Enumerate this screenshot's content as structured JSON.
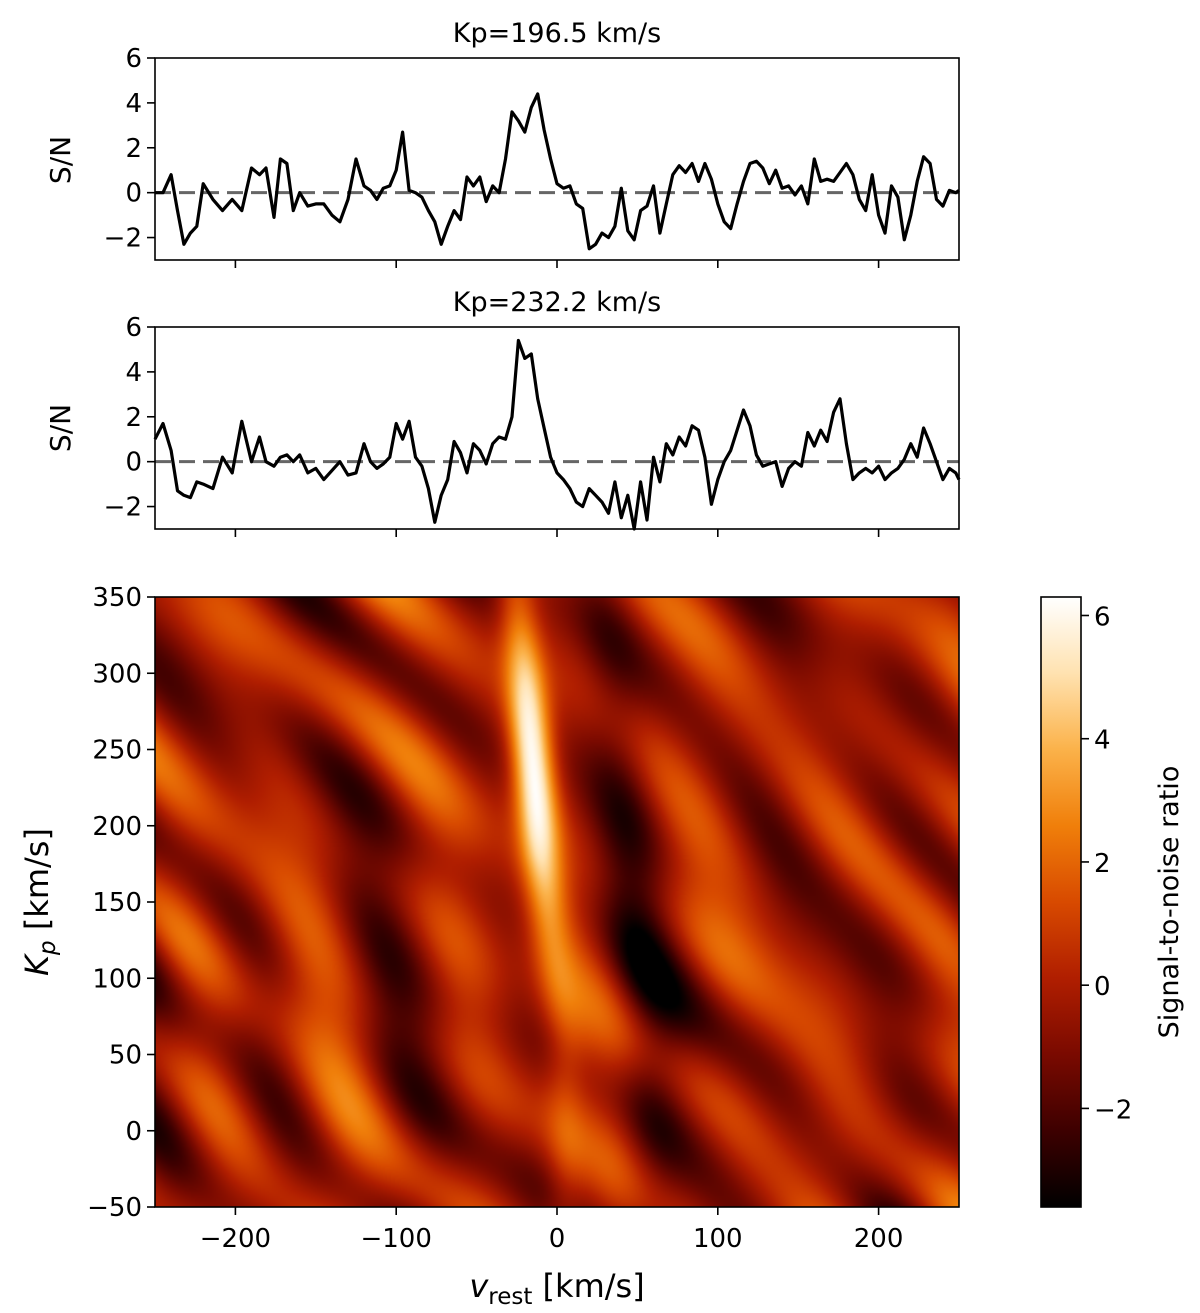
{
  "colors": {
    "line": "#000000",
    "zero_line": "#666666",
    "colormap": [
      "#000000",
      "#3d0000",
      "#7a0a00",
      "#b01e00",
      "#d84a00",
      "#f07f0a",
      "#fbb24a",
      "#ffe2b0",
      "#ffffff"
    ]
  },
  "chart_data": [
    {
      "type": "line",
      "title": "Kp=196.5 km/s",
      "ylabel": "S/N",
      "xlabel": "",
      "xlim": [
        -250,
        250
      ],
      "ylim": [
        -3,
        6
      ],
      "yticks": [
        -2,
        0,
        2,
        4,
        6
      ],
      "yticklabels": [
        "−2",
        "0",
        "2",
        "4",
        "6"
      ],
      "xticks": [
        -200,
        -100,
        0,
        100,
        200
      ],
      "zero_line": 0,
      "x": [
        -250,
        -245,
        -240,
        -236,
        -232,
        -228,
        -224,
        -220,
        -214,
        -208,
        -202,
        -196,
        -190,
        -185,
        -181,
        -176,
        -172,
        -168,
        -164,
        -160,
        -155,
        -150,
        -145,
        -140,
        -135,
        -130,
        -125,
        -120,
        -116,
        -112,
        -108,
        -104,
        -100,
        -96,
        -92,
        -88,
        -84,
        -80,
        -76,
        -72,
        -68,
        -64,
        -60,
        -56,
        -52,
        -48,
        -44,
        -40,
        -36,
        -32,
        -28,
        -24,
        -20,
        -16,
        -12,
        -8,
        -4,
        0,
        4,
        8,
        12,
        16,
        20,
        24,
        28,
        32,
        36,
        40,
        44,
        48,
        52,
        56,
        60,
        64,
        68,
        72,
        76,
        80,
        84,
        88,
        92,
        96,
        100,
        104,
        108,
        112,
        116,
        120,
        124,
        128,
        132,
        136,
        140,
        144,
        148,
        152,
        156,
        160,
        164,
        168,
        172,
        176,
        180,
        184,
        188,
        192,
        196,
        200,
        204,
        208,
        212,
        216,
        220,
        224,
        228,
        232,
        236,
        240,
        244,
        248,
        250
      ],
      "y": [
        0.0,
        0.0,
        0.8,
        -0.8,
        -2.3,
        -1.8,
        -1.5,
        0.4,
        -0.3,
        -0.8,
        -0.3,
        -0.8,
        1.1,
        0.8,
        1.1,
        -1.1,
        1.5,
        1.3,
        -0.8,
        0.0,
        -0.6,
        -0.5,
        -0.5,
        -1.0,
        -1.3,
        -0.3,
        1.5,
        0.3,
        0.1,
        -0.3,
        0.2,
        0.3,
        1.0,
        2.7,
        0.1,
        0.0,
        -0.2,
        -0.8,
        -1.3,
        -2.3,
        -1.5,
        -0.8,
        -1.2,
        0.7,
        0.3,
        0.7,
        -0.4,
        0.3,
        0.0,
        1.5,
        3.6,
        3.2,
        2.7,
        3.8,
        4.4,
        2.8,
        1.5,
        0.4,
        0.2,
        0.3,
        -0.5,
        -0.7,
        -2.5,
        -2.3,
        -1.8,
        -2.0,
        -1.5,
        0.2,
        -1.7,
        -2.1,
        -0.8,
        -0.6,
        0.3,
        -1.8,
        -0.5,
        0.8,
        1.2,
        0.9,
        1.3,
        0.5,
        1.3,
        0.6,
        -0.5,
        -1.3,
        -1.6,
        -0.5,
        0.5,
        1.3,
        1.4,
        1.1,
        0.4,
        1.0,
        0.2,
        0.3,
        -0.1,
        0.3,
        -0.5,
        1.5,
        0.5,
        0.6,
        0.5,
        0.9,
        1.3,
        0.8,
        -0.3,
        -0.8,
        0.8,
        -1.0,
        -1.8,
        0.3,
        -0.2,
        -2.1,
        -1.0,
        0.5,
        1.6,
        1.3,
        -0.3,
        -0.6,
        0.1,
        0.0,
        0.1
      ]
    },
    {
      "type": "line",
      "title": "Kp=232.2 km/s",
      "ylabel": "S/N",
      "xlabel": "",
      "xlim": [
        -250,
        250
      ],
      "ylim": [
        -3,
        6
      ],
      "yticks": [
        -2,
        0,
        2,
        4,
        6
      ],
      "yticklabels": [
        "−2",
        "0",
        "2",
        "4",
        "6"
      ],
      "xticks": [
        -200,
        -100,
        0,
        100,
        200
      ],
      "zero_line": 0,
      "x": [
        -250,
        -245,
        -240,
        -236,
        -232,
        -228,
        -224,
        -220,
        -214,
        -208,
        -202,
        -196,
        -190,
        -185,
        -181,
        -176,
        -172,
        -168,
        -164,
        -160,
        -155,
        -150,
        -145,
        -140,
        -135,
        -130,
        -125,
        -120,
        -116,
        -112,
        -108,
        -104,
        -100,
        -96,
        -92,
        -88,
        -84,
        -80,
        -76,
        -72,
        -68,
        -64,
        -60,
        -56,
        -52,
        -48,
        -44,
        -40,
        -36,
        -32,
        -28,
        -24,
        -20,
        -16,
        -12,
        -8,
        -4,
        0,
        4,
        8,
        12,
        16,
        20,
        24,
        28,
        32,
        36,
        40,
        44,
        48,
        52,
        56,
        60,
        64,
        68,
        72,
        76,
        80,
        84,
        88,
        92,
        96,
        100,
        104,
        108,
        112,
        116,
        120,
        124,
        128,
        132,
        136,
        140,
        144,
        148,
        152,
        156,
        160,
        164,
        168,
        172,
        176,
        180,
        184,
        188,
        192,
        196,
        200,
        204,
        208,
        212,
        216,
        220,
        224,
        228,
        232,
        236,
        240,
        244,
        248,
        250
      ],
      "y": [
        1.0,
        1.7,
        0.5,
        -1.3,
        -1.5,
        -1.6,
        -0.9,
        -1.0,
        -1.2,
        0.2,
        -0.5,
        1.8,
        0.0,
        1.1,
        0.0,
        -0.2,
        0.2,
        0.3,
        0.0,
        0.3,
        -0.5,
        -0.3,
        -0.8,
        -0.4,
        0.0,
        -0.6,
        -0.5,
        0.8,
        0.0,
        -0.3,
        -0.1,
        0.2,
        1.7,
        1.0,
        1.8,
        0.2,
        -0.2,
        -1.2,
        -2.7,
        -1.5,
        -0.8,
        0.9,
        0.4,
        -0.5,
        0.8,
        0.5,
        -0.1,
        0.8,
        1.1,
        1.0,
        2.0,
        5.4,
        4.6,
        4.8,
        2.8,
        1.5,
        0.2,
        -0.5,
        -0.8,
        -1.2,
        -1.8,
        -2.0,
        -1.2,
        -1.5,
        -1.8,
        -2.3,
        -0.9,
        -2.5,
        -1.5,
        -3.0,
        -0.9,
        -2.6,
        0.2,
        -0.9,
        0.8,
        0.3,
        1.1,
        0.7,
        1.6,
        1.4,
        0.2,
        -1.9,
        -0.8,
        0.0,
        0.5,
        1.4,
        2.3,
        1.6,
        0.3,
        -0.2,
        -0.1,
        0.0,
        -1.1,
        -0.3,
        0.0,
        -0.2,
        1.3,
        0.7,
        1.4,
        0.9,
        2.2,
        2.8,
        0.8,
        -0.8,
        -0.5,
        -0.3,
        -0.5,
        -0.2,
        -0.8,
        -0.5,
        -0.3,
        0.1,
        0.8,
        0.2,
        1.5,
        0.8,
        0.0,
        -0.8,
        -0.3,
        -0.5,
        -0.8
      ]
    },
    {
      "type": "heatmap",
      "xlabel_main": "v",
      "xlabel_sub": "rest",
      "xlabel_unit": " [km/s]",
      "ylabel_main": "K",
      "ylabel_sub": "p",
      "ylabel_unit": " [km/s]",
      "xlim": [
        -250,
        250
      ],
      "ylim": [
        -50,
        350
      ],
      "xticks": [
        -200,
        -100,
        0,
        100,
        200
      ],
      "xticklabels": [
        "−200",
        "−100",
        "0",
        "100",
        "200"
      ],
      "yticks": [
        -50,
        0,
        50,
        100,
        150,
        200,
        250,
        300,
        350
      ],
      "yticklabels": [
        "−50",
        "0",
        "50",
        "100",
        "150",
        "200",
        "250",
        "300",
        "350"
      ],
      "colorbar": {
        "label": "Signal-to-noise ratio",
        "range": [
          -3.6,
          6.3
        ],
        "ticks": [
          -2,
          0,
          2,
          4,
          6
        ],
        "ticklabels": [
          "−2",
          "0",
          "2",
          "4",
          "6"
        ]
      },
      "peak": {
        "vrest": -15,
        "kp": 240,
        "snr": 6.2
      },
      "signal_track": [
        {
          "kp": 350,
          "vrest": -25
        },
        {
          "kp": 300,
          "vrest": -20
        },
        {
          "kp": 240,
          "vrest": -15
        },
        {
          "kp": 180,
          "vrest": -10
        },
        {
          "kp": 120,
          "vrest": -3
        },
        {
          "kp": 60,
          "vrest": 5
        }
      ]
    }
  ]
}
